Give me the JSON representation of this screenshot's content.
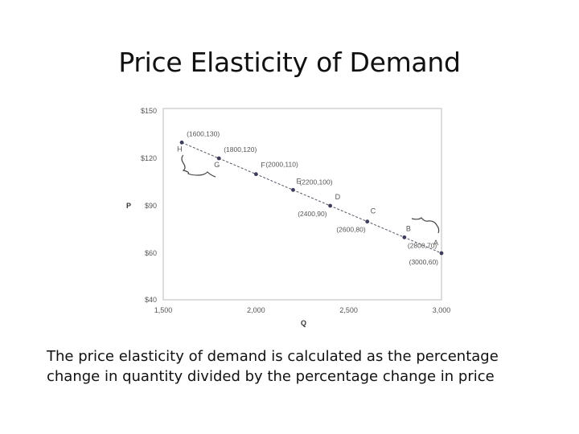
{
  "title": "Price Elasticity of Demand",
  "caption": {
    "line1": "The price elasticity of demand is calculated as the percentage",
    "line2": "change in quantity divided by the percentage change in price"
  },
  "chart_data": {
    "type": "line",
    "xlabel": "Q",
    "ylabel": "P",
    "xlim": [
      1500,
      3000
    ],
    "y_ticks": [
      {
        "value": 150,
        "label": "$150"
      },
      {
        "value": 120,
        "label": "$120"
      },
      {
        "value": 90,
        "label": "$90"
      },
      {
        "value": 60,
        "label": "$60"
      },
      {
        "value": 40,
        "label": "$40"
      }
    ],
    "x_ticks": [
      {
        "value": 1500,
        "label": "1,500"
      },
      {
        "value": 2000,
        "label": "2,000"
      },
      {
        "value": 2500,
        "label": "2,500"
      },
      {
        "value": 3000,
        "label": "3,000"
      }
    ],
    "points": [
      {
        "letter": "H",
        "x": 1600,
        "y": 130,
        "label": "(1600,130)"
      },
      {
        "letter": "G",
        "x": 1800,
        "y": 120,
        "label": "(1800,120)"
      },
      {
        "letter": "F",
        "x": 2000,
        "y": 110,
        "label": "(2000,110)"
      },
      {
        "letter": "E",
        "x": 2200,
        "y": 100,
        "label": "(2200,100)"
      },
      {
        "letter": "D",
        "x": 2400,
        "y": 90,
        "label": "(2400,90)"
      },
      {
        "letter": "C",
        "x": 2600,
        "y": 80,
        "label": "(2600,80)"
      },
      {
        "letter": "B",
        "x": 2800,
        "y": 70,
        "label": "(2800,70)"
      },
      {
        "letter": "A",
        "x": 3000,
        "y": 60,
        "label": "(3000,60)"
      }
    ],
    "grid": false,
    "colors": {
      "line": "#555566",
      "point": "#3d3d5c",
      "frame": "#bbbbbb"
    }
  }
}
